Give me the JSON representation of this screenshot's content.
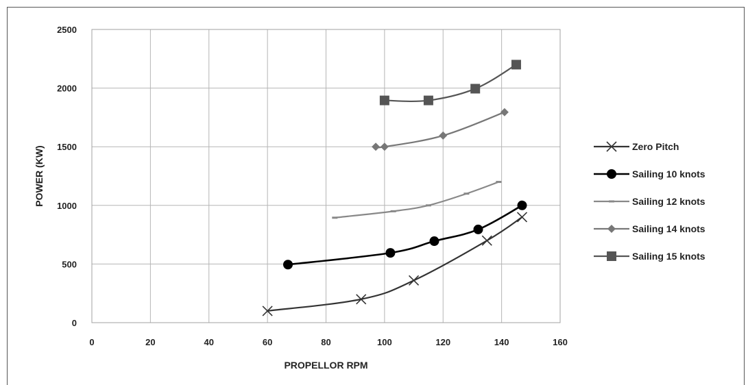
{
  "chart_data": {
    "type": "line",
    "xlabel": "PROPELLOR RPM",
    "ylabel": "POWER (KW)",
    "xlim": [
      0,
      160
    ],
    "ylim": [
      0,
      2500
    ],
    "xticks": [
      0,
      20,
      40,
      60,
      80,
      100,
      120,
      140,
      160
    ],
    "yticks": [
      0,
      500,
      1000,
      1500,
      2000,
      2500
    ],
    "grid": true,
    "legend_position": "right",
    "series": [
      {
        "name": "Zero Pitch",
        "marker": "x",
        "color": "#333333",
        "x": [
          60,
          92,
          110,
          135,
          147
        ],
        "y": [
          100,
          200,
          360,
          700,
          900
        ]
      },
      {
        "name": "Sailing 10 knots",
        "marker": "circle",
        "color": "#000000",
        "x": [
          67,
          102,
          117,
          132,
          147
        ],
        "y": [
          495,
          595,
          695,
          795,
          1000
        ]
      },
      {
        "name": "Sailing 12 knots",
        "marker": "dash",
        "color": "#888888",
        "x": [
          83,
          103,
          115,
          128,
          139
        ],
        "y": [
          895,
          950,
          1000,
          1100,
          1200
        ]
      },
      {
        "name": "Sailing 14 knots",
        "marker": "diamond",
        "color": "#777777",
        "x": [
          97,
          100,
          120,
          141
        ],
        "y": [
          1500,
          1500,
          1595,
          1795
        ]
      },
      {
        "name": "Sailing 15 knots",
        "marker": "square",
        "color": "#555555",
        "x": [
          100,
          115,
          131,
          145
        ],
        "y": [
          1895,
          1895,
          1995,
          2200
        ]
      }
    ]
  }
}
